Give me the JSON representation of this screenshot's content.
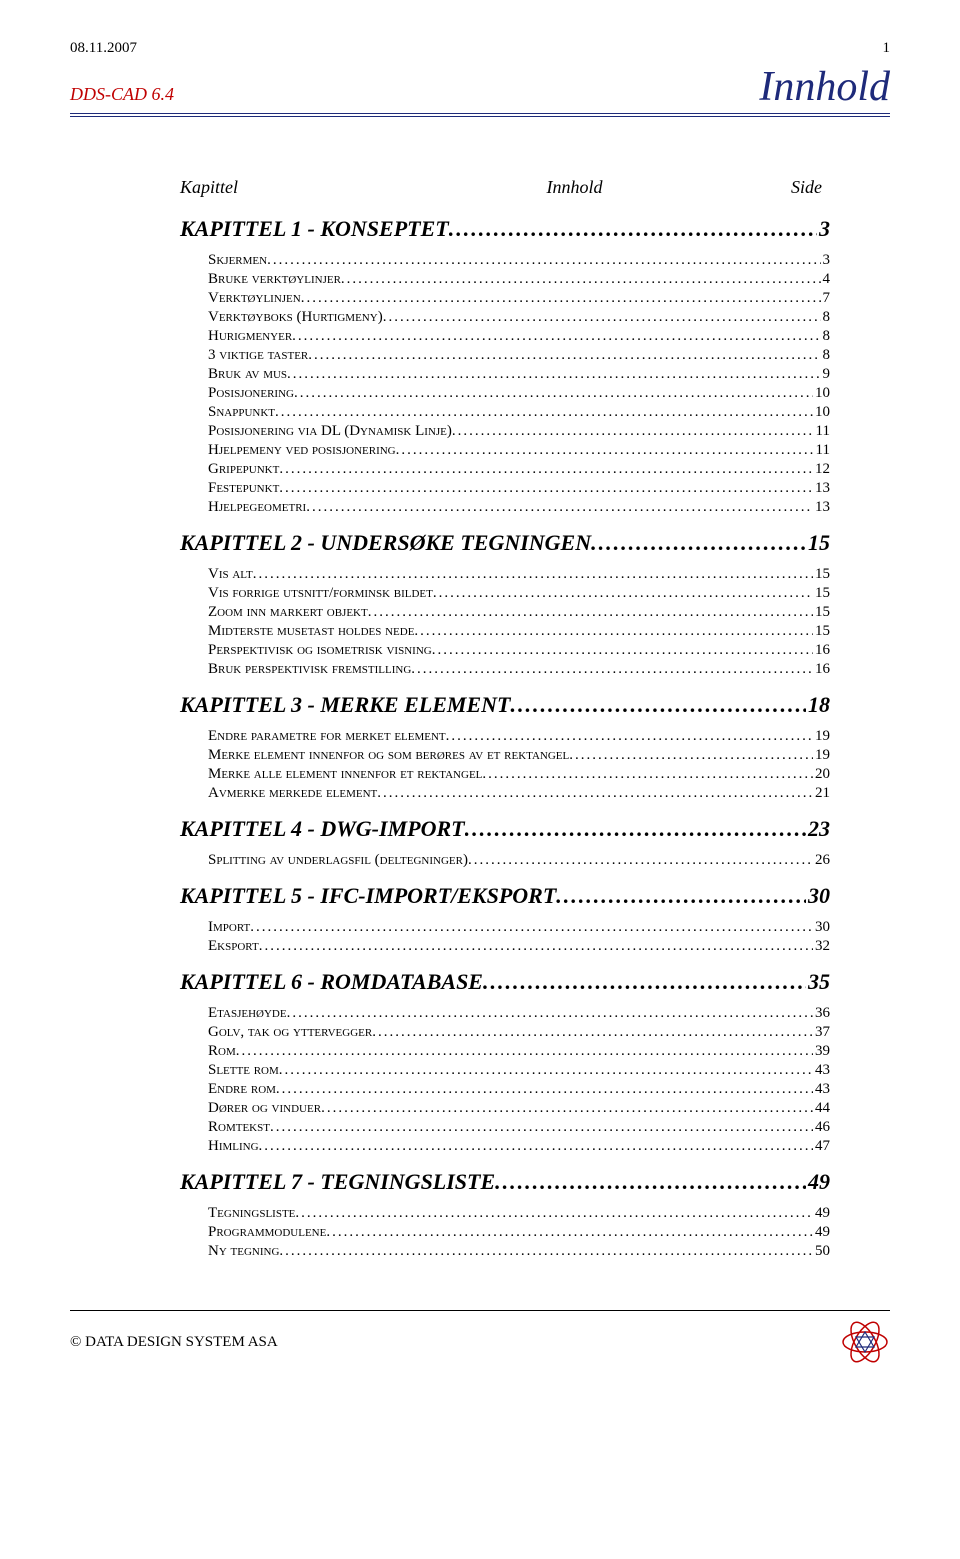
{
  "header": {
    "date": "08.11.2007",
    "pageno": "1"
  },
  "product": "DDS-CAD 6.4",
  "title": "Innhold",
  "columns": {
    "left": "Kapittel",
    "mid": "Innhold",
    "right": "Side"
  },
  "toc": [
    {
      "type": "chapter",
      "label": "KAPITTEL 1 - KONSEPTET",
      "page": "3"
    },
    {
      "type": "entry",
      "label": "Skjermen",
      "page": "3"
    },
    {
      "type": "entry",
      "label": "Bruke verktøylinjer",
      "page": "4"
    },
    {
      "type": "entry",
      "label": "Verktøylinjen",
      "page": "7"
    },
    {
      "type": "entry",
      "label": "Verktøyboks (Hurtigmeny)",
      "page": "8"
    },
    {
      "type": "entry",
      "label": "Hurigmenyer",
      "page": "8"
    },
    {
      "type": "entry",
      "label": "3 viktige taster",
      "page": "8"
    },
    {
      "type": "entry",
      "label": "Bruk av mus",
      "page": "9"
    },
    {
      "type": "entry",
      "label": "Posisjonering",
      "page": "10"
    },
    {
      "type": "entry",
      "label": "Snappunkt",
      "page": "10"
    },
    {
      "type": "entry",
      "label": "Posisjonering via DL (Dynamisk Linje)",
      "page": "11"
    },
    {
      "type": "entry",
      "label": "Hjelpemeny ved posisjonering",
      "page": "11"
    },
    {
      "type": "entry",
      "label": "Gripepunkt",
      "page": "12"
    },
    {
      "type": "entry",
      "label": "Festepunkt",
      "page": "13"
    },
    {
      "type": "entry",
      "label": "Hjelpegeometri",
      "page": "13"
    },
    {
      "type": "chapter",
      "label": "KAPITTEL 2 - UNDERSØKE TEGNINGEN",
      "page": "15"
    },
    {
      "type": "entry",
      "label": "Vis alt",
      "page": "15"
    },
    {
      "type": "entry",
      "label": "Vis forrige utsnitt/forminsk bildet",
      "page": "15"
    },
    {
      "type": "entry",
      "label": "Zoom inn markert objekt",
      "page": "15"
    },
    {
      "type": "entry",
      "label": "Midterste musetast holdes nede",
      "page": "15"
    },
    {
      "type": "entry",
      "label": "Perspektivisk og isometrisk visning",
      "page": "16"
    },
    {
      "type": "entry",
      "label": "Bruk perspektivisk fremstilling",
      "page": "16"
    },
    {
      "type": "chapter",
      "label": "KAPITTEL 3 - MERKE ELEMENT",
      "page": "18"
    },
    {
      "type": "entry",
      "label": "Endre parametre for merket element",
      "page": "19"
    },
    {
      "type": "entry",
      "label": "Merke element innenfor og som berøres av et rektangel",
      "page": "19"
    },
    {
      "type": "entry",
      "label": "Merke alle element innenfor et rektangel",
      "page": "20"
    },
    {
      "type": "entry",
      "label": "Avmerke merkede element",
      "page": "21"
    },
    {
      "type": "chapter",
      "label": "KAPITTEL 4 - DWG-IMPORT",
      "page": "23"
    },
    {
      "type": "entry",
      "label": "Splitting av underlagsfil (deltegninger)",
      "page": "26"
    },
    {
      "type": "chapter",
      "label": "KAPITTEL 5 - IFC-IMPORT/EKSPORT",
      "page": "30"
    },
    {
      "type": "entry",
      "label": "Import",
      "page": "30"
    },
    {
      "type": "entry",
      "label": "Eksport",
      "page": "32"
    },
    {
      "type": "chapter",
      "label": "KAPITTEL 6 - ROMDATABASE",
      "page": "35"
    },
    {
      "type": "entry",
      "label": "Etasjehøyde",
      "page": "36"
    },
    {
      "type": "entry",
      "label": "Golv, tak og yttervegger",
      "page": "37"
    },
    {
      "type": "entry",
      "label": "Rom",
      "page": "39"
    },
    {
      "type": "entry",
      "label": "Slette rom",
      "page": "43"
    },
    {
      "type": "entry",
      "label": "Endre rom",
      "page": "43"
    },
    {
      "type": "entry",
      "label": "Dører og vinduer",
      "page": "44"
    },
    {
      "type": "entry",
      "label": "Romtekst",
      "page": "46"
    },
    {
      "type": "entry",
      "label": "Himling",
      "page": "47"
    },
    {
      "type": "chapter",
      "label": "KAPITTEL 7 - TEGNINGSLISTE",
      "page": "49"
    },
    {
      "type": "entry",
      "label": "Tegningsliste",
      "page": "49"
    },
    {
      "type": "entry",
      "label": "Programmodulene",
      "page": "49"
    },
    {
      "type": "entry",
      "label": "Ny tegning",
      "page": "50"
    }
  ],
  "footer": {
    "copyright": "© DATA DESIGN SYSTEM ASA"
  }
}
